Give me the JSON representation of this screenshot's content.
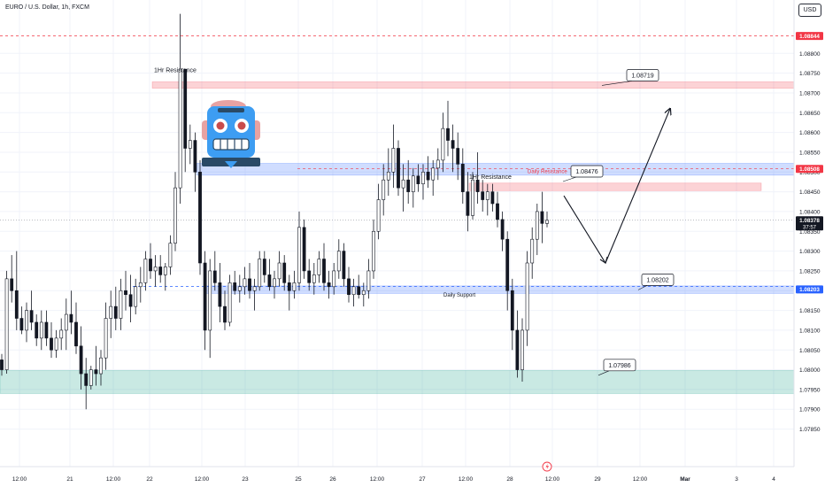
{
  "header": {
    "symbol_title": "EURO / U.S. Dollar, 1h, FXCM",
    "currency_button": "USD"
  },
  "chart_data": {
    "type": "candlestick",
    "title": "EURO / U.S. Dollar, 1h, FXCM",
    "ylim": [
      1.07755,
      1.08935
    ],
    "y_ticks": [
      1.0785,
      1.079,
      1.0795,
      1.08,
      1.0805,
      1.081,
      1.0815,
      1.082,
      1.0825,
      1.083,
      1.0835,
      1.084,
      1.0845,
      1.085,
      1.0855,
      1.086,
      1.0865,
      1.087,
      1.0875,
      1.088
    ],
    "y_tick_labels": [
      "1.07850",
      "1.07900",
      "1.07950",
      "1.08000",
      "1.08050",
      "1.08100",
      "1.08150",
      "1.08200",
      "1.08250",
      "1.08300",
      "1.08350",
      "1.08400",
      "1.08450",
      "1.08500",
      "1.08550",
      "1.08600",
      "1.08650",
      "1.08700",
      "1.08750",
      "1.08800"
    ],
    "x_tick_labels": [
      {
        "label": "12:00",
        "bold": false
      },
      {
        "label": "21",
        "bold": false
      },
      {
        "label": "12:00",
        "bold": false
      },
      {
        "label": "22",
        "bold": false
      },
      {
        "label": "12:00",
        "bold": false
      },
      {
        "label": "23",
        "bold": false
      },
      {
        "label": "25",
        "bold": false
      },
      {
        "label": "26",
        "bold": false
      },
      {
        "label": "12:00",
        "bold": false
      },
      {
        "label": "27",
        "bold": false
      },
      {
        "label": "12:00",
        "bold": false
      },
      {
        "label": "28",
        "bold": false
      },
      {
        "label": "12:00",
        "bold": false
      },
      {
        "label": "29",
        "bold": false
      },
      {
        "label": "12:00",
        "bold": false
      },
      {
        "label": "Mar",
        "bold": true
      },
      {
        "label": "3",
        "bold": false
      },
      {
        "label": "4",
        "bold": false
      }
    ],
    "price_badges": [
      {
        "label": "1.08844",
        "value": 1.08844,
        "color": "#f23645"
      },
      {
        "label": "1.08508",
        "value": 1.08508,
        "color": "#f23645"
      },
      {
        "label": "1.08378",
        "value": 1.08378,
        "color": "#131722",
        "sub": "37:57"
      },
      {
        "label": "1.08203",
        "value": 1.08203,
        "color": "#2962ff"
      }
    ],
    "zones": [
      {
        "name": "1Hr Resistance",
        "from": 1.08712,
        "to": 1.08728,
        "color": "#f23645"
      },
      {
        "name": "Daily Resistance",
        "from": 1.08492,
        "to": 1.08522,
        "color": "#2962ff"
      },
      {
        "name": "1Hr Resistance",
        "from": 1.08453,
        "to": 1.08472,
        "color": "#f23645"
      },
      {
        "name": "Daily Support",
        "from": 1.08193,
        "to": 1.08212,
        "color": "#2962ff"
      },
      {
        "name": "",
        "from": 1.0794,
        "to": 1.07998,
        "color": "#089981"
      }
    ],
    "zone_labels": [
      "1Hr Resistance",
      "Daily Resistance",
      "1Hr Resistance",
      "Daily Support"
    ],
    "callouts": [
      {
        "label": "1.08719",
        "value": 1.08719
      },
      {
        "label": "1.08476",
        "value": 1.08476
      },
      {
        "label": "1.08202",
        "value": 1.08202
      },
      {
        "label": "1.07986",
        "value": 1.07986
      }
    ],
    "projection": {
      "points": [
        1.0844,
        1.0827,
        1.0866
      ]
    },
    "candles": [
      [
        1.08025,
        1.0804,
        1.07985,
        1.08
      ],
      [
        1.08,
        1.0825,
        1.0799,
        1.0823
      ],
      [
        1.0823,
        1.0829,
        1.0817,
        1.082
      ],
      [
        1.082,
        1.083,
        1.081,
        1.0813
      ],
      [
        1.0813,
        1.0816,
        1.0809,
        1.081
      ],
      [
        1.081,
        1.0817,
        1.0807,
        1.0815
      ],
      [
        1.0815,
        1.082,
        1.081,
        1.0812
      ],
      [
        1.0812,
        1.0814,
        1.0806,
        1.0808
      ],
      [
        1.0808,
        1.0815,
        1.0805,
        1.0812
      ],
      [
        1.0812,
        1.0815,
        1.0806,
        1.0808
      ],
      [
        1.0808,
        1.0812,
        1.0803,
        1.0805
      ],
      [
        1.0805,
        1.081,
        1.0803,
        1.0808
      ],
      [
        1.0808,
        1.0813,
        1.0805,
        1.081
      ],
      [
        1.081,
        1.0818,
        1.0805,
        1.0814
      ],
      [
        1.0814,
        1.082,
        1.0809,
        1.0812
      ],
      [
        1.0812,
        1.0817,
        1.0804,
        1.0806
      ],
      [
        1.0806,
        1.0811,
        1.0795,
        1.0799
      ],
      [
        1.0799,
        1.0803,
        1.079,
        1.0796
      ],
      [
        1.0796,
        1.0801,
        1.0795,
        1.08
      ],
      [
        1.08,
        1.0806,
        1.0796,
        1.0799
      ],
      [
        1.0799,
        1.0805,
        1.0796,
        1.0803
      ],
      [
        1.0803,
        1.0817,
        1.08,
        1.0813
      ],
      [
        1.0813,
        1.082,
        1.0808,
        1.0816
      ],
      [
        1.0816,
        1.0821,
        1.081,
        1.0813
      ],
      [
        1.0813,
        1.0823,
        1.081,
        1.082
      ],
      [
        1.082,
        1.0825,
        1.0815,
        1.0819
      ],
      [
        1.0819,
        1.0824,
        1.0812,
        1.0816
      ],
      [
        1.0816,
        1.0823,
        1.0814,
        1.0821
      ],
      [
        1.0821,
        1.0826,
        1.0817,
        1.0822
      ],
      [
        1.0822,
        1.083,
        1.082,
        1.0828
      ],
      [
        1.0828,
        1.0832,
        1.0823,
        1.0825
      ],
      [
        1.0825,
        1.0829,
        1.0821,
        1.0826
      ],
      [
        1.0826,
        1.0829,
        1.0822,
        1.0824
      ],
      [
        1.0824,
        1.0827,
        1.082,
        1.0826
      ],
      [
        1.0826,
        1.0834,
        1.0824,
        1.0832
      ],
      [
        1.0832,
        1.085,
        1.083,
        1.0846
      ],
      [
        1.0846,
        1.089,
        1.0842,
        1.0876
      ],
      [
        1.0876,
        1.0876,
        1.085,
        1.0856
      ],
      [
        1.0856,
        1.0862,
        1.0852,
        1.0858
      ],
      [
        1.0858,
        1.086,
        1.0845,
        1.085
      ],
      [
        1.085,
        1.0853,
        1.0824,
        1.0827
      ],
      [
        1.0827,
        1.083,
        1.0805,
        1.081
      ],
      [
        1.081,
        1.0828,
        1.0803,
        1.0825
      ],
      [
        1.0825,
        1.083,
        1.082,
        1.0822
      ],
      [
        1.0822,
        1.0827,
        1.0812,
        1.0816
      ],
      [
        1.0816,
        1.082,
        1.081,
        1.0812
      ],
      [
        1.0812,
        1.0824,
        1.0811,
        1.0822
      ],
      [
        1.0822,
        1.0825,
        1.0819,
        1.082
      ],
      [
        1.082,
        1.0824,
        1.0817,
        1.0821
      ],
      [
        1.0821,
        1.0826,
        1.0819,
        1.0823
      ],
      [
        1.0823,
        1.0827,
        1.0818,
        1.082
      ],
      [
        1.082,
        1.0823,
        1.0815,
        1.0821
      ],
      [
        1.0821,
        1.083,
        1.082,
        1.0828
      ],
      [
        1.0828,
        1.083,
        1.0822,
        1.0824
      ],
      [
        1.0824,
        1.0828,
        1.082,
        1.0821
      ],
      [
        1.0821,
        1.0825,
        1.0818,
        1.0823
      ],
      [
        1.0823,
        1.083,
        1.0821,
        1.0827
      ],
      [
        1.0827,
        1.0829,
        1.082,
        1.0822
      ],
      [
        1.0822,
        1.0824,
        1.0815,
        1.082
      ],
      [
        1.082,
        1.0825,
        1.0818,
        1.0822
      ],
      [
        1.0822,
        1.084,
        1.082,
        1.0836
      ],
      [
        1.0836,
        1.0838,
        1.0823,
        1.0825
      ],
      [
        1.0825,
        1.0828,
        1.082,
        1.0822
      ],
      [
        1.0822,
        1.0827,
        1.0819,
        1.0824
      ],
      [
        1.0824,
        1.083,
        1.0822,
        1.0828
      ],
      [
        1.0828,
        1.0832,
        1.082,
        1.0822
      ],
      [
        1.0822,
        1.0825,
        1.0818,
        1.0821
      ],
      [
        1.0821,
        1.0827,
        1.0819,
        1.0825
      ],
      [
        1.0825,
        1.0833,
        1.0823,
        1.083
      ],
      [
        1.083,
        1.0832,
        1.0821,
        1.0823
      ],
      [
        1.0823,
        1.0826,
        1.0817,
        1.0819
      ],
      [
        1.0819,
        1.0823,
        1.0816,
        1.0821
      ],
      [
        1.0821,
        1.0824,
        1.0818,
        1.0819
      ],
      [
        1.0819,
        1.0822,
        1.0816,
        1.082
      ],
      [
        1.082,
        1.0828,
        1.0818,
        1.0825
      ],
      [
        1.0825,
        1.0838,
        1.0823,
        1.0835
      ],
      [
        1.0835,
        1.0847,
        1.0833,
        1.0843
      ],
      [
        1.0843,
        1.0852,
        1.0839,
        1.0848
      ],
      [
        1.0848,
        1.0856,
        1.0844,
        1.085
      ],
      [
        1.085,
        1.0862,
        1.0846,
        1.0856
      ],
      [
        1.0856,
        1.0858,
        1.0844,
        1.0846
      ],
      [
        1.0846,
        1.0852,
        1.084,
        1.0848
      ],
      [
        1.0848,
        1.0853,
        1.0842,
        1.0845
      ],
      [
        1.0845,
        1.0851,
        1.0841,
        1.0849
      ],
      [
        1.0849,
        1.0852,
        1.0845,
        1.0847
      ],
      [
        1.0847,
        1.0852,
        1.0843,
        1.085
      ],
      [
        1.085,
        1.0854,
        1.0846,
        1.0848
      ],
      [
        1.0848,
        1.0853,
        1.0844,
        1.0851
      ],
      [
        1.0851,
        1.0856,
        1.0848,
        1.0853
      ],
      [
        1.0853,
        1.0865,
        1.085,
        1.0861
      ],
      [
        1.0861,
        1.0868,
        1.0854,
        1.0858
      ],
      [
        1.0858,
        1.0862,
        1.085,
        1.0856
      ],
      [
        1.0856,
        1.086,
        1.0848,
        1.0852
      ],
      [
        1.0852,
        1.0856,
        1.0842,
        1.0845
      ],
      [
        1.0845,
        1.085,
        1.0835,
        1.0839
      ],
      [
        1.0839,
        1.085,
        1.0838,
        1.0848
      ],
      [
        1.0848,
        1.0855,
        1.0842,
        1.0845
      ],
      [
        1.0845,
        1.0848,
        1.084,
        1.0843
      ],
      [
        1.0843,
        1.0847,
        1.0839,
        1.0845
      ],
      [
        1.0845,
        1.0847,
        1.084,
        1.0842
      ],
      [
        1.0842,
        1.0845,
        1.0836,
        1.0838
      ],
      [
        1.0838,
        1.084,
        1.083,
        1.0833
      ],
      [
        1.0833,
        1.0835,
        1.0815,
        1.082
      ],
      [
        1.082,
        1.0823,
        1.0805,
        1.081
      ],
      [
        1.081,
        1.0815,
        1.0798,
        1.08
      ],
      [
        1.08,
        1.0813,
        1.0797,
        1.081
      ],
      [
        1.081,
        1.083,
        1.0806,
        1.0827
      ],
      [
        1.0827,
        1.0836,
        1.0823,
        1.0833
      ],
      [
        1.0833,
        1.0842,
        1.0829,
        1.084
      ],
      [
        1.084,
        1.0845,
        1.0832,
        1.0837
      ],
      [
        1.0837,
        1.084,
        1.0836,
        1.08378
      ]
    ]
  }
}
